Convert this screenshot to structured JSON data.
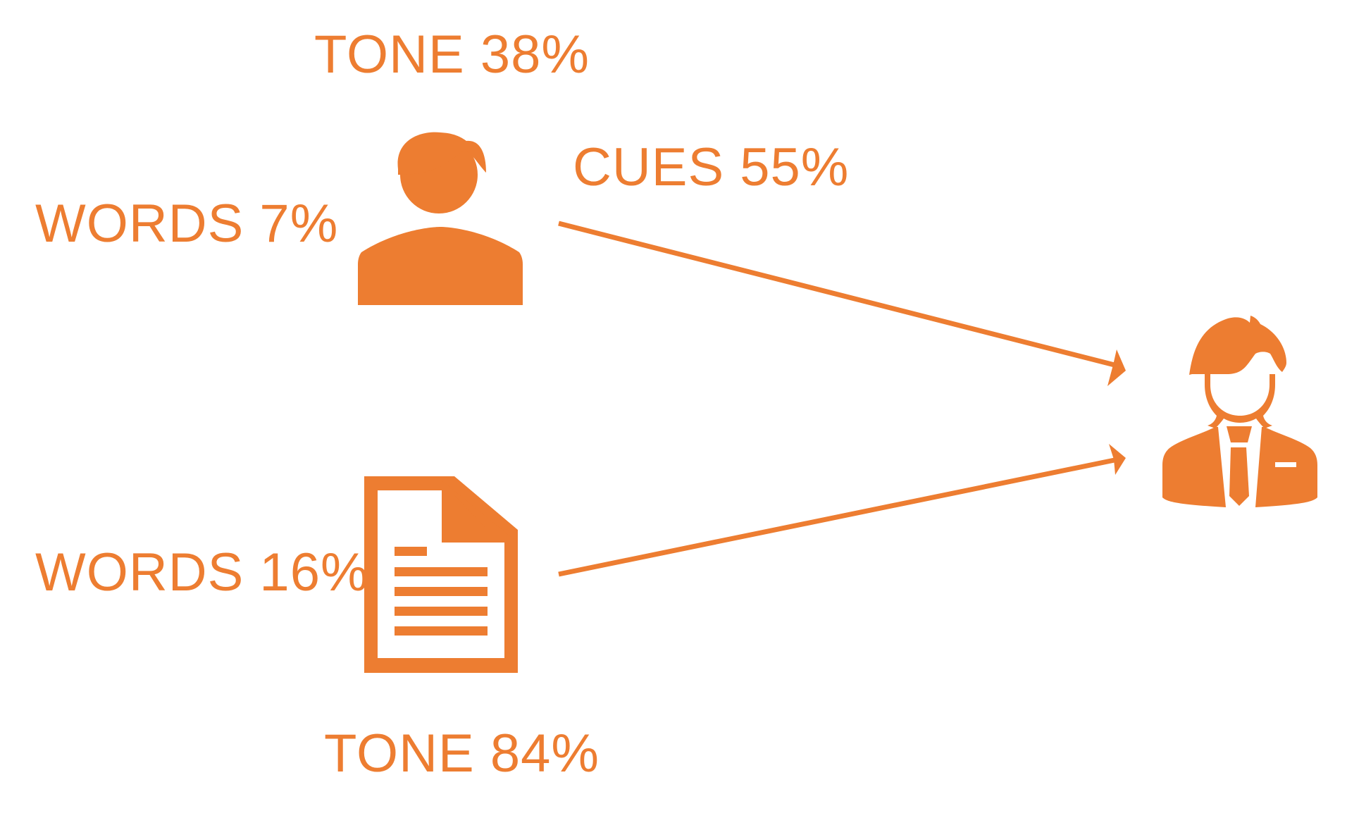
{
  "colors": {
    "accent": "#ED7D31",
    "background": "#FFFFFF"
  },
  "labels": {
    "tone_top": "TONE 38%",
    "cues": "CUES 55%",
    "words_top": "WORDS 7%",
    "words_bottom": "WORDS 16%",
    "tone_bottom": "TONE 84%"
  },
  "icons": {
    "speaker": "person-icon",
    "document": "document-icon",
    "receiver": "businessman-icon"
  }
}
